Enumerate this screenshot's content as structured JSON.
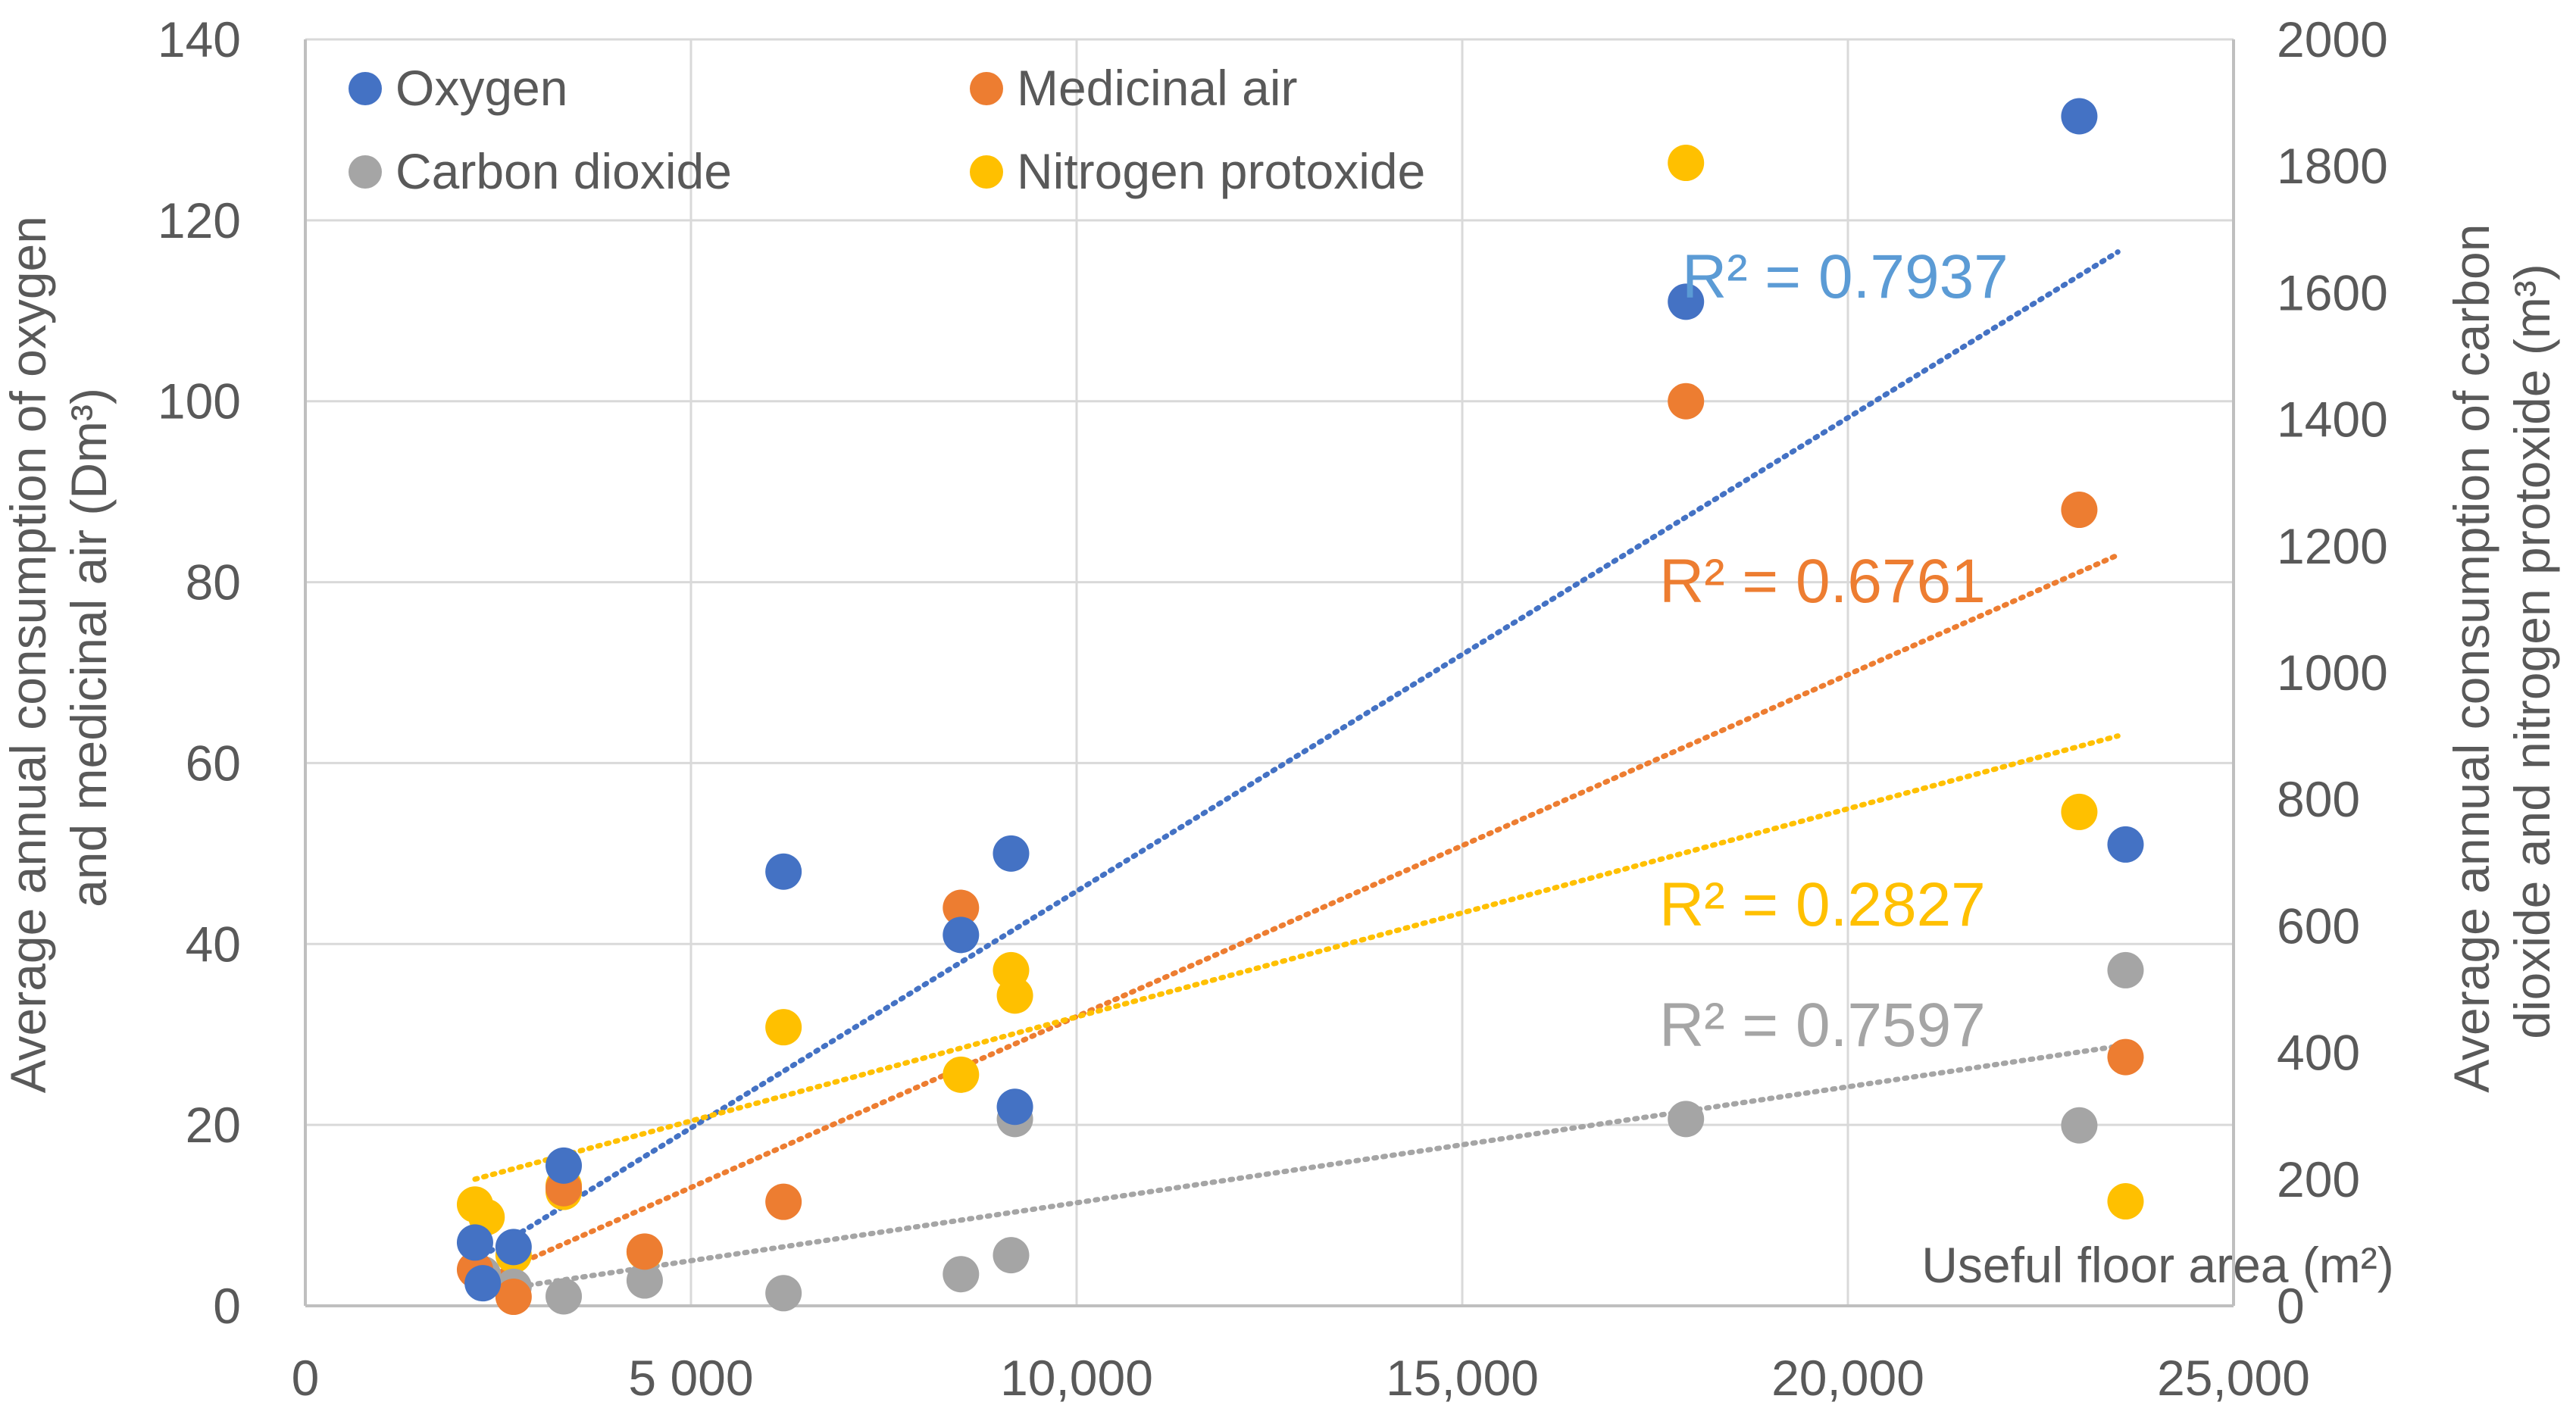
{
  "colors": {
    "oxygen": "#4472C4",
    "medicinal_air": "#ED7D31",
    "carbon_dioxide": "#A5A5A5",
    "nitrogen_protoxide": "#FFC000",
    "r2_oxygen": "#5B9BD5",
    "axis_text": "#595959",
    "grid": "#D9D9D9"
  },
  "chart_data": {
    "type": "scatter",
    "title": "",
    "xlabel": "Useful floor area (m²)",
    "ylabel_left": "Average annual consumption of oxygen and medicinal air (Dm³)",
    "ylabel_left_line1": "Average annual consumption of oxygen",
    "ylabel_left_line2": "and medicinal air (Dm³)",
    "ylabel_right": "Average annual consumption of carbon dioxide and nitrogen protoxide (m³)",
    "ylabel_right_line1": "Average annual consumption of carbon",
    "ylabel_right_line2": "dioxide and nitrogen protoxide (m³)",
    "xlim": [
      0,
      25000
    ],
    "ylim_left": [
      0,
      140
    ],
    "ylim_right": [
      0,
      2000
    ],
    "x_ticks": [
      0,
      5000,
      10000,
      15000,
      20000,
      25000
    ],
    "x_tick_labels": [
      "0",
      "5 000",
      "10,000",
      "15,000",
      "20,000",
      "25,000"
    ],
    "y_left_ticks": [
      0,
      20,
      40,
      60,
      80,
      100,
      120,
      140
    ],
    "y_left_tick_labels": [
      "0",
      "20",
      "40",
      "60",
      "80",
      "100",
      "120",
      "140"
    ],
    "y_right_ticks": [
      0,
      200,
      400,
      600,
      800,
      1000,
      1200,
      1400,
      1600,
      1800,
      2000
    ],
    "y_right_tick_labels": [
      "0",
      "200",
      "400",
      "600",
      "800",
      "1000",
      "1200",
      "1400",
      "1600",
      "1800",
      "2000"
    ],
    "legend_position": "top-left",
    "series": [
      {
        "key": "oxygen",
        "name": "Oxygen",
        "axis": "left",
        "points": [
          [
            2200,
            7
          ],
          [
            2300,
            2.5
          ],
          [
            2700,
            6.5
          ],
          [
            3350,
            15.5
          ],
          [
            6200,
            48
          ],
          [
            8500,
            41
          ],
          [
            9150,
            50
          ],
          [
            9200,
            22
          ],
          [
            17900,
            111
          ],
          [
            23000,
            131.5
          ],
          [
            23600,
            51
          ]
        ],
        "trendline": {
          "x": [
            2200,
            23500
          ],
          "y": [
            5,
            116.5
          ]
        },
        "r2_label": "R² = 0.7937"
      },
      {
        "key": "medicinal_air",
        "name": "Medicinal air",
        "axis": "left",
        "points": [
          [
            2200,
            4
          ],
          [
            2700,
            1
          ],
          [
            3350,
            13
          ],
          [
            4400,
            6
          ],
          [
            6200,
            11.5
          ],
          [
            8500,
            44
          ],
          [
            17900,
            100
          ],
          [
            23000,
            88
          ],
          [
            23600,
            27.5
          ]
        ],
        "trendline": {
          "x": [
            2200,
            23500
          ],
          "y": [
            2.5,
            83
          ]
        },
        "r2_label": "R² = 0.6761"
      },
      {
        "key": "carbon_dioxide",
        "name": "Carbon dioxide",
        "axis": "right",
        "points": [
          [
            2300,
            50
          ],
          [
            2700,
            30
          ],
          [
            3350,
            15
          ],
          [
            4400,
            40
          ],
          [
            6200,
            20
          ],
          [
            8500,
            50
          ],
          [
            9150,
            80
          ],
          [
            9200,
            295
          ],
          [
            17900,
            295
          ],
          [
            23000,
            285
          ],
          [
            23600,
            530
          ]
        ],
        "trendline": {
          "x": [
            2200,
            23500
          ],
          "y": [
            20,
            410
          ]
        },
        "r2_label": "R² = 0.7597"
      },
      {
        "key": "nitrogen_protoxide",
        "name": "Nitrogen protoxide",
        "axis": "right",
        "points": [
          [
            2200,
            160
          ],
          [
            2350,
            140
          ],
          [
            2700,
            80
          ],
          [
            3350,
            180
          ],
          [
            3350,
            190
          ],
          [
            4400,
            85
          ],
          [
            6200,
            440
          ],
          [
            8500,
            365
          ],
          [
            9150,
            530
          ],
          [
            9200,
            490
          ],
          [
            17900,
            1805
          ],
          [
            23000,
            780
          ],
          [
            23600,
            165
          ]
        ],
        "trendline": {
          "x": [
            2200,
            23500
          ],
          "y": [
            200,
            900
          ]
        },
        "r2_label": "R² = 0.2827"
      }
    ]
  }
}
